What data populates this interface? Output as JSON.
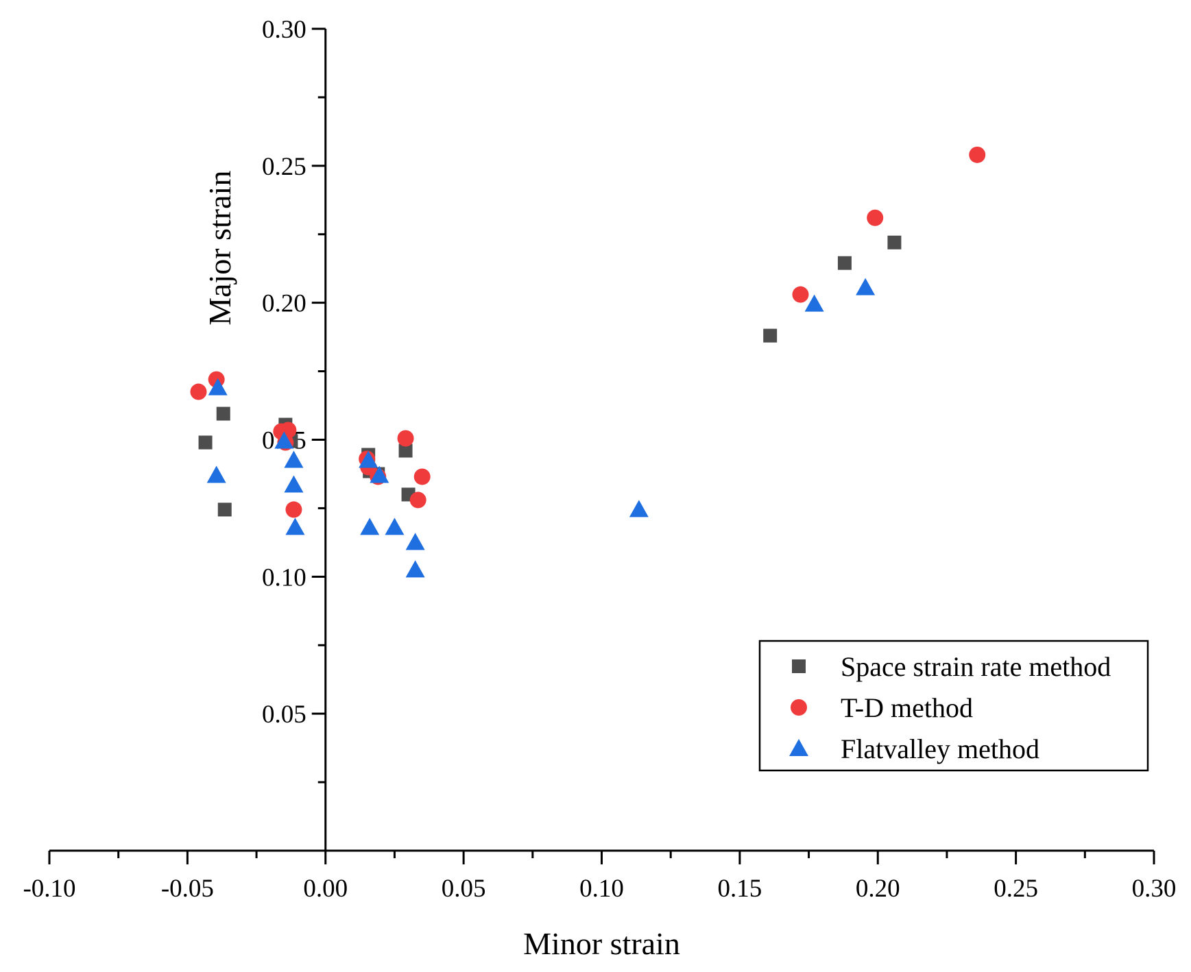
{
  "chart_data": {
    "type": "scatter",
    "title": "",
    "xlabel": "Minor strain",
    "ylabel": "Major strain",
    "xlim": [
      -0.1,
      0.3
    ],
    "ylim": [
      0.0,
      0.3
    ],
    "x_ticks": [
      -0.1,
      -0.05,
      0.0,
      0.05,
      0.1,
      0.15,
      0.2,
      0.25,
      0.3
    ],
    "x_tick_labels": [
      "-0.10",
      "-0.05",
      "0.00",
      "0.05",
      "0.10",
      "0.15",
      "0.20",
      "0.25",
      "0.30"
    ],
    "y_ticks": [
      0.05,
      0.1,
      0.15,
      0.2,
      0.25,
      0.3
    ],
    "y_tick_labels": [
      "0.05",
      "0.10",
      "0.15",
      "0.20",
      "0.25",
      "0.30"
    ],
    "grid": false,
    "legend_position": "lower-right",
    "series": [
      {
        "name": "Space strain rate method",
        "marker": "square",
        "color": "#4d4d4d",
        "points": [
          {
            "x": -0.0435,
            "y": 0.149
          },
          {
            "x": -0.037,
            "y": 0.1595
          },
          {
            "x": -0.0365,
            "y": 0.1245
          },
          {
            "x": -0.0145,
            "y": 0.1555
          },
          {
            "x": -0.0125,
            "y": 0.1495
          },
          {
            "x": 0.0155,
            "y": 0.1445
          },
          {
            "x": 0.016,
            "y": 0.1385
          },
          {
            "x": 0.019,
            "y": 0.1375
          },
          {
            "x": 0.029,
            "y": 0.146
          },
          {
            "x": 0.03,
            "y": 0.13
          },
          {
            "x": 0.161,
            "y": 0.188
          },
          {
            "x": 0.188,
            "y": 0.2145
          },
          {
            "x": 0.206,
            "y": 0.222
          }
        ]
      },
      {
        "name": "T-D method",
        "marker": "circle",
        "color": "#ef3b3b",
        "points": [
          {
            "x": -0.046,
            "y": 0.1675
          },
          {
            "x": -0.0395,
            "y": 0.172
          },
          {
            "x": -0.016,
            "y": 0.153
          },
          {
            "x": -0.0135,
            "y": 0.1535
          },
          {
            "x": -0.0145,
            "y": 0.149
          },
          {
            "x": -0.0115,
            "y": 0.1245
          },
          {
            "x": 0.015,
            "y": 0.143
          },
          {
            "x": 0.0155,
            "y": 0.14
          },
          {
            "x": 0.019,
            "y": 0.1365
          },
          {
            "x": 0.029,
            "y": 0.1505
          },
          {
            "x": 0.0335,
            "y": 0.128
          },
          {
            "x": 0.035,
            "y": 0.1365
          },
          {
            "x": 0.172,
            "y": 0.203
          },
          {
            "x": 0.199,
            "y": 0.231
          },
          {
            "x": 0.236,
            "y": 0.254
          }
        ]
      },
      {
        "name": "Flatvalley method",
        "marker": "triangle",
        "color": "#1f6fe0",
        "points": [
          {
            "x": -0.039,
            "y": 0.169
          },
          {
            "x": -0.0395,
            "y": 0.137
          },
          {
            "x": -0.015,
            "y": 0.1495
          },
          {
            "x": -0.0115,
            "y": 0.1425
          },
          {
            "x": -0.0115,
            "y": 0.1335
          },
          {
            "x": -0.011,
            "y": 0.118
          },
          {
            "x": 0.0155,
            "y": 0.1425
          },
          {
            "x": 0.0195,
            "y": 0.137
          },
          {
            "x": 0.016,
            "y": 0.118
          },
          {
            "x": 0.025,
            "y": 0.118
          },
          {
            "x": 0.0325,
            "y": 0.1125
          },
          {
            "x": 0.0325,
            "y": 0.1025
          },
          {
            "x": 0.1135,
            "y": 0.1245
          },
          {
            "x": 0.177,
            "y": 0.1995
          },
          {
            "x": 0.1955,
            "y": 0.2055
          }
        ]
      }
    ]
  }
}
